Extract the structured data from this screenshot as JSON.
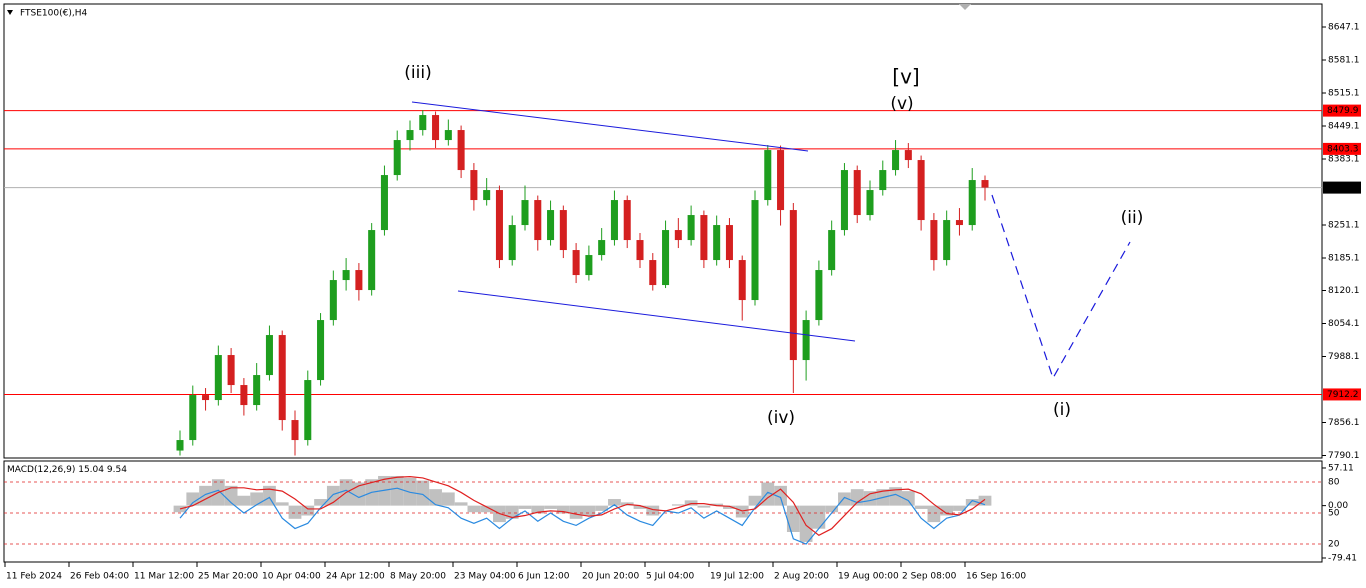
{
  "chart_data": [
    {
      "type": "candlestick",
      "title": "FTSE100(€),H4",
      "open": [
        7800,
        7821,
        7911,
        7901,
        7991,
        7931,
        7891,
        7951,
        8031,
        7861,
        7821,
        7941,
        8061,
        8141,
        8161,
        8121,
        8241,
        8351,
        8421,
        8441,
        8471,
        8421,
        8441,
        8361,
        8301,
        8321,
        8181,
        8251,
        8301,
        8221,
        8281,
        8201,
        8151,
        8191,
        8221,
        8301,
        8221,
        8181,
        8131,
        8241,
        8221,
        8271,
        8181,
        8251,
        8181,
        8101,
        8301,
        8401,
        8281,
        7981,
        8061,
        8161,
        8241,
        8361,
        8271,
        8321,
        8361,
        8401,
        8381,
        8261,
        8181,
        8261,
        8251,
        8341
      ],
      "high": [
        7840,
        7930,
        7925,
        8010,
        8005,
        7945,
        7975,
        8050,
        8040,
        7880,
        7960,
        8075,
        8160,
        8185,
        8175,
        8255,
        8370,
        8440,
        8460,
        8481,
        8478,
        8462,
        8450,
        8375,
        8345,
        8330,
        8270,
        8330,
        8310,
        8300,
        8290,
        8215,
        8210,
        8245,
        8320,
        8310,
        8235,
        8195,
        8260,
        8265,
        8290,
        8280,
        8270,
        8265,
        8190,
        8320,
        8411,
        8410,
        8295,
        8080,
        8180,
        8260,
        8375,
        8370,
        8340,
        8380,
        8421,
        8415,
        8390,
        8275,
        8280,
        8285,
        8365,
        8350
      ],
      "low": [
        7790,
        7810,
        7880,
        7890,
        7915,
        7870,
        7880,
        7940,
        7840,
        7790,
        7810,
        7930,
        8050,
        8120,
        8100,
        8110,
        8230,
        8340,
        8400,
        8430,
        8405,
        8410,
        8345,
        8280,
        8290,
        8165,
        8170,
        8240,
        8200,
        8210,
        8185,
        8135,
        8140,
        8180,
        8210,
        8205,
        8165,
        8120,
        8125,
        8205,
        8210,
        8165,
        8170,
        8165,
        8060,
        8090,
        8290,
        8250,
        7915,
        7940,
        8050,
        8150,
        8230,
        8255,
        8260,
        8310,
        8350,
        8365,
        8240,
        8160,
        8170,
        8230,
        8240,
        8300
      ],
      "close": [
        7821,
        7911,
        7901,
        7991,
        7931,
        7891,
        7951,
        8031,
        7861,
        7821,
        7941,
        8061,
        8141,
        8161,
        8121,
        8241,
        8351,
        8421,
        8441,
        8471,
        8421,
        8441,
        8361,
        8301,
        8321,
        8181,
        8251,
        8301,
        8221,
        8281,
        8201,
        8151,
        8191,
        8221,
        8301,
        8221,
        8181,
        8131,
        8241,
        8221,
        8271,
        8181,
        8251,
        8181,
        8101,
        8301,
        8401,
        8281,
        7981,
        8061,
        8161,
        8241,
        8361,
        8271,
        8321,
        8361,
        8401,
        8381,
        8261,
        8181,
        8261,
        8251,
        8341,
        8326
      ],
      "up_color": "#1e9e1e",
      "down_color": "#d42020",
      "ylim": [
        7785.1,
        8693.1
      ],
      "yticks": [
        8647.1,
        8581.1,
        8515.1,
        8449.1,
        8383.1,
        8251.1,
        8185.1,
        8120.1,
        8054.1,
        7988.1,
        7856.1,
        7790.1
      ],
      "levels": [
        {
          "value": 8479.9,
          "color": "#ff0000"
        },
        {
          "value": 8403.3,
          "color": "#ff0000"
        },
        {
          "value": 8325.9,
          "color": "#000000"
        },
        {
          "value": 7912.2,
          "color": "#ff0000"
        }
      ],
      "xtick_labels": [
        "11 Feb 2024",
        "26 Feb 04:00",
        "11 Mar 12:00",
        "25 Mar 20:00",
        "10 Apr 04:00",
        "24 Apr 12:00",
        "8 May 20:00",
        "23 May 04:00",
        "6 Jun 12:00",
        "20 Jun 20:00",
        "5 Jul 04:00",
        "19 Jul 12:00",
        "2 Aug 20:00",
        "19 Aug 00:00",
        "2 Sep 08:00",
        "16 Sep 16:00"
      ],
      "annotations": [
        {
          "text": "(iii)",
          "color": "#1a1adc"
        },
        {
          "text": "[v]",
          "color": "#1f8a1f"
        },
        {
          "text": "(v)",
          "color": "#1a1adc"
        },
        {
          "text": "(iv)",
          "color": "#1a1adc"
        },
        {
          "text": "(i)",
          "color": "#1a1adc"
        },
        {
          "text": "(ii)",
          "color": "#1a1adc"
        }
      ]
    },
    {
      "type": "macd",
      "title": "MACD(12,26,9)",
      "macd_value": 15.04,
      "signal_value": 9.54,
      "histogram": [
        -10,
        20,
        30,
        40,
        30,
        15,
        20,
        30,
        5,
        -20,
        -15,
        10,
        30,
        40,
        35,
        40,
        45,
        45,
        42,
        38,
        25,
        20,
        5,
        -10,
        -10,
        -25,
        -20,
        -5,
        -12,
        -5,
        -12,
        -20,
        -15,
        -8,
        10,
        5,
        -5,
        -15,
        0,
        2,
        8,
        -3,
        3,
        -5,
        -18,
        15,
        35,
        30,
        -40,
        -55,
        -35,
        -10,
        20,
        25,
        22,
        25,
        28,
        22,
        -5,
        -25,
        -15,
        -8,
        10,
        15.04
      ],
      "signal": [
        -5,
        0,
        10,
        20,
        27,
        27,
        24,
        25,
        22,
        10,
        -5,
        -5,
        5,
        20,
        30,
        35,
        40,
        43,
        44,
        42,
        36,
        30,
        20,
        8,
        -2,
        -12,
        -18,
        -15,
        -10,
        -8,
        -9,
        -13,
        -16,
        -14,
        -5,
        2,
        0,
        -6,
        -8,
        -3,
        3,
        3,
        0,
        -1,
        -8,
        -5,
        12,
        25,
        5,
        -30,
        -45,
        -35,
        -15,
        5,
        18,
        22,
        24,
        25,
        18,
        2,
        -12,
        -14,
        -5,
        9.54
      ],
      "oscillator": [
        45,
        60,
        68,
        72,
        60,
        50,
        58,
        65,
        45,
        35,
        40,
        55,
        68,
        72,
        65,
        70,
        72,
        74,
        70,
        68,
        58,
        55,
        45,
        40,
        45,
        35,
        45,
        52,
        42,
        50,
        42,
        38,
        45,
        50,
        58,
        48,
        42,
        38,
        52,
        50,
        55,
        45,
        52,
        45,
        38,
        55,
        70,
        65,
        25,
        20,
        35,
        50,
        65,
        60,
        62,
        65,
        68,
        62,
        45,
        35,
        45,
        48,
        62,
        58
      ],
      "histogram_color": "#c0c0c0",
      "signal_color": "#e02020",
      "oscillator_color": "#2a8ae0",
      "level_color": "#e02020",
      "ylim": [
        -85.5,
        67.7
      ],
      "yticks": [
        57.11,
        {
          "value": 0,
          "label": "0.00"
        },
        -79.41
      ],
      "y2lim": [
        2.6,
        100.3
      ],
      "y2ticks": [
        80,
        50,
        20
      ]
    }
  ]
}
